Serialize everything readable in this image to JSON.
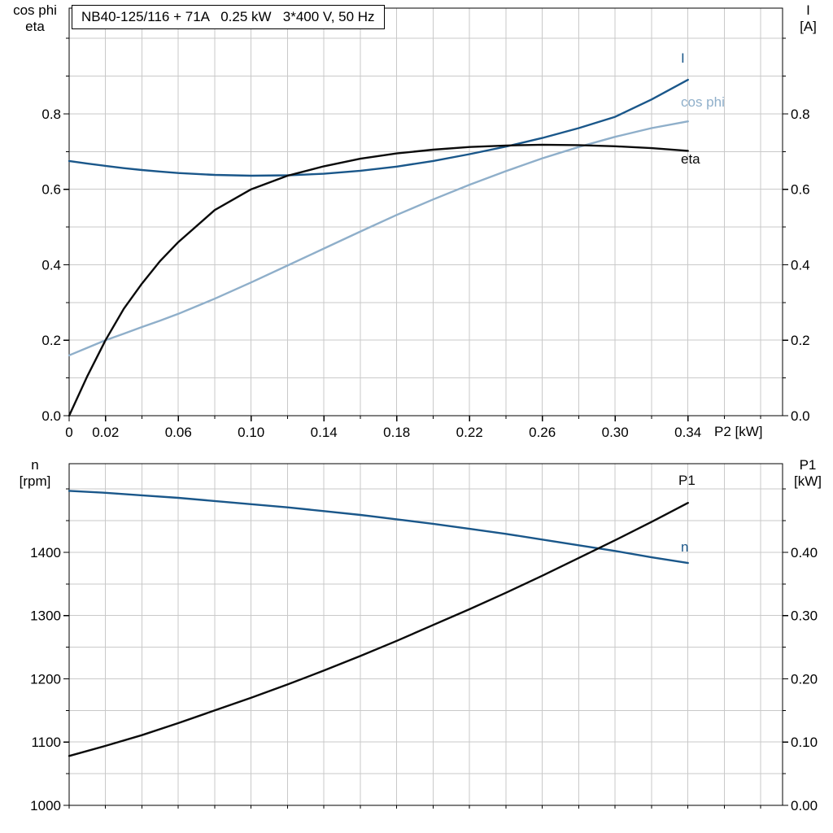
{
  "title_box": {
    "text": "NB40-125/116 + 71A   0.25 kW   3*400 V, 50 Hz"
  },
  "colors": {
    "dark_blue": "#1a578a",
    "light_blue": "#8fafca",
    "black": "#0a0a0a",
    "grid": "#c9c9c9",
    "frame": "#000000"
  },
  "chart_data": [
    {
      "type": "line",
      "name": "motor-electrical-curves",
      "x_axis_label": "P2 [kW]",
      "left_axis_title_lines": [
        "cos phi",
        "eta"
      ],
      "right_axis_title_lines": [
        "I",
        "[A]"
      ],
      "xlim": [
        0,
        0.392
      ],
      "grid_x_step": 0.02,
      "x_labeled_ticks": [
        0,
        0.02,
        0.06,
        0.1,
        0.14,
        0.18,
        0.22,
        0.26,
        0.3,
        0.34
      ],
      "x_tick_labels": [
        "0",
        "0.02",
        "0.06",
        "0.10",
        "0.14",
        "0.18",
        "0.22",
        "0.26",
        "0.30",
        "0.34"
      ],
      "left_ylim": [
        0,
        1.08
      ],
      "right_ylim": [
        0,
        1.08
      ],
      "grid_y_step": 0.1,
      "left_labeled_ticks": [
        0,
        0.2,
        0.4,
        0.6,
        0.8
      ],
      "left_tick_labels": [
        "0.0",
        "0.2",
        "0.4",
        "0.6",
        "0.8"
      ],
      "right_labeled_ticks": [
        0,
        0.2,
        0.4,
        0.6,
        0.8
      ],
      "right_tick_labels": [
        "0.0",
        "0.2",
        "0.4",
        "0.6",
        "0.8"
      ],
      "grid": true,
      "x": [
        0,
        0.01,
        0.02,
        0.03,
        0.04,
        0.05,
        0.06,
        0.08,
        0.1,
        0.12,
        0.14,
        0.16,
        0.18,
        0.2,
        0.22,
        0.24,
        0.26,
        0.28,
        0.3,
        0.32,
        0.34
      ],
      "series": [
        {
          "name": "I",
          "axis": "left",
          "color": "dark_blue",
          "values": [
            0.675,
            0.668,
            0.662,
            0.656,
            0.651,
            0.647,
            0.643,
            0.638,
            0.636,
            0.637,
            0.641,
            0.649,
            0.66,
            0.675,
            0.693,
            0.713,
            0.736,
            0.762,
            0.792,
            0.838,
            0.89
          ]
        },
        {
          "name": "cos phi",
          "axis": "left",
          "color": "light_blue",
          "values": [
            0.16,
            0.18,
            0.2,
            0.217,
            0.235,
            0.252,
            0.27,
            0.31,
            0.353,
            0.398,
            0.443,
            0.488,
            0.532,
            0.573,
            0.612,
            0.648,
            0.682,
            0.712,
            0.739,
            0.762,
            0.78
          ]
        },
        {
          "name": "eta",
          "axis": "left",
          "color": "black",
          "values": [
            0.0,
            0.105,
            0.2,
            0.283,
            0.35,
            0.41,
            0.46,
            0.545,
            0.6,
            0.636,
            0.661,
            0.681,
            0.695,
            0.705,
            0.712,
            0.716,
            0.718,
            0.717,
            0.714,
            0.709,
            0.702
          ]
        }
      ],
      "curve_labels": [
        {
          "text": "I",
          "color": "dark_blue"
        },
        {
          "text": "cos phi",
          "color": "light_blue"
        },
        {
          "text": "eta",
          "color": "black"
        }
      ]
    },
    {
      "type": "line",
      "name": "speed-and-input-power-curves",
      "x_axis_label": "",
      "left_axis_title_lines": [
        "n",
        "[rpm]"
      ],
      "right_axis_title_lines": [
        "P1",
        "[kW]"
      ],
      "xlim": [
        0,
        0.392
      ],
      "grid_x_step": 0.02,
      "x_labeled_ticks": [],
      "x_tick_labels": [],
      "left_ylim": [
        1000,
        1540
      ],
      "right_ylim": [
        0,
        0.54
      ],
      "grid_y_step": 50,
      "left_labeled_ticks": [
        1000,
        1100,
        1200,
        1300,
        1400
      ],
      "left_tick_labels": [
        "1000",
        "1100",
        "1200",
        "1300",
        "1400"
      ],
      "right_labeled_ticks": [
        0,
        0.1,
        0.2,
        0.3,
        0.4
      ],
      "right_tick_labels": [
        "0.00",
        "0.10",
        "0.20",
        "0.30",
        "0.40"
      ],
      "grid": true,
      "x": [
        0,
        0.02,
        0.04,
        0.06,
        0.08,
        0.1,
        0.12,
        0.14,
        0.16,
        0.18,
        0.2,
        0.22,
        0.24,
        0.26,
        0.28,
        0.3,
        0.32,
        0.34
      ],
      "series": [
        {
          "name": "n",
          "axis": "left",
          "color": "dark_blue",
          "values": [
            1497,
            1494,
            1490,
            1486,
            1481,
            1476,
            1471,
            1465,
            1459,
            1452,
            1445,
            1437,
            1429,
            1420,
            1411,
            1402,
            1392,
            1383
          ]
        },
        {
          "name": "P1",
          "axis": "right",
          "color": "black",
          "values": [
            0.078,
            0.094,
            0.111,
            0.13,
            0.15,
            0.17,
            0.191,
            0.213,
            0.236,
            0.26,
            0.285,
            0.31,
            0.336,
            0.363,
            0.391,
            0.419,
            0.448,
            0.478
          ]
        }
      ],
      "curve_labels": [
        {
          "text": "P1",
          "color": "black"
        },
        {
          "text": "n",
          "color": "dark_blue"
        }
      ]
    }
  ]
}
